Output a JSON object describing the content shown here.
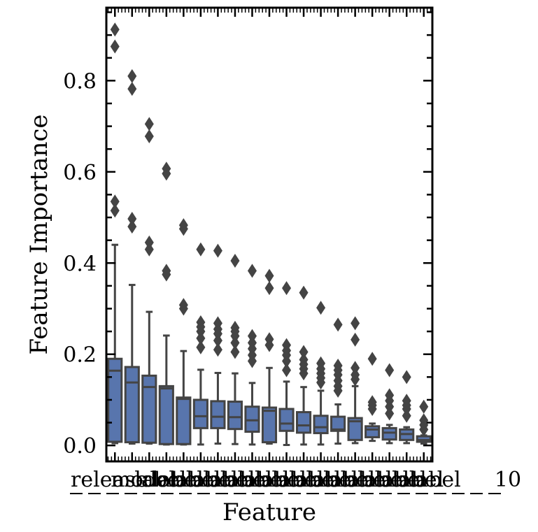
{
  "chart_data": {
    "type": "box",
    "xlabel": "Feature",
    "ylabel": "Feature Importance",
    "ylim": [
      -0.035,
      0.96
    ],
    "yticks": [
      0.0,
      0.2,
      0.4,
      0.6,
      0.8
    ],
    "ytick_labels": [
      "0.0",
      "0.2",
      "0.4",
      "0.6",
      "0.8"
    ],
    "grid": false,
    "box_color": "#5875ad",
    "edge_color": "#444444",
    "axis_color": "#000000",
    "x_tick_labels_overlapping": [
      "release",
      "model",
      "label",
      "label",
      "label",
      "label",
      "label",
      "label",
      "label",
      "label",
      "label",
      "label",
      "label",
      "label",
      "label",
      "label",
      "label",
      "label",
      "label",
      "10"
    ],
    "boxes": [
      {
        "whislo": 0.005,
        "q1": 0.008,
        "med": 0.164,
        "q3": 0.19,
        "whishi": 0.44,
        "fliers": [
          0.515,
          0.535,
          0.875,
          0.912
        ]
      },
      {
        "whislo": 0.004,
        "q1": 0.007,
        "med": 0.138,
        "q3": 0.172,
        "whishi": 0.352,
        "fliers": [
          0.48,
          0.497,
          0.782,
          0.81
        ]
      },
      {
        "whislo": 0.004,
        "q1": 0.006,
        "med": 0.128,
        "q3": 0.153,
        "whishi": 0.293,
        "fliers": [
          0.43,
          0.445,
          0.678,
          0.705
        ]
      },
      {
        "whislo": 0.002,
        "q1": 0.003,
        "med": 0.125,
        "q3": 0.13,
        "whishi": 0.241,
        "fliers": [
          0.375,
          0.383,
          0.596,
          0.607
        ]
      },
      {
        "whislo": 0.002,
        "q1": 0.003,
        "med": 0.102,
        "q3": 0.105,
        "whishi": 0.207,
        "fliers": [
          0.3,
          0.308,
          0.475,
          0.483
        ]
      },
      {
        "whislo": 0.002,
        "q1": 0.038,
        "med": 0.064,
        "q3": 0.1,
        "whishi": 0.166,
        "fliers": [
          0.215,
          0.235,
          0.25,
          0.26,
          0.27,
          0.43
        ]
      },
      {
        "whislo": 0.004,
        "q1": 0.038,
        "med": 0.063,
        "q3": 0.097,
        "whishi": 0.159,
        "fliers": [
          0.21,
          0.23,
          0.245,
          0.255,
          0.268,
          0.427
        ]
      },
      {
        "whislo": 0.003,
        "q1": 0.036,
        "med": 0.062,
        "q3": 0.096,
        "whishi": 0.158,
        "fliers": [
          0.205,
          0.225,
          0.24,
          0.25,
          0.258,
          0.405
        ]
      },
      {
        "whislo": 0.002,
        "q1": 0.03,
        "med": 0.055,
        "q3": 0.085,
        "whishi": 0.137,
        "fliers": [
          0.185,
          0.198,
          0.212,
          0.225,
          0.24,
          0.383
        ]
      },
      {
        "whislo": 0.004,
        "q1": 0.007,
        "med": 0.076,
        "q3": 0.083,
        "whishi": 0.17,
        "fliers": [
          0.22,
          0.233,
          0.345,
          0.372
        ]
      },
      {
        "whislo": 0.001,
        "q1": 0.032,
        "med": 0.048,
        "q3": 0.08,
        "whishi": 0.14,
        "fliers": [
          0.165,
          0.185,
          0.198,
          0.208,
          0.22,
          0.345
        ]
      },
      {
        "whislo": 0.002,
        "q1": 0.028,
        "med": 0.044,
        "q3": 0.073,
        "whishi": 0.128,
        "fliers": [
          0.158,
          0.168,
          0.178,
          0.188,
          0.205,
          0.335
        ]
      },
      {
        "whislo": 0.002,
        "q1": 0.027,
        "med": 0.04,
        "q3": 0.065,
        "whishi": 0.12,
        "fliers": [
          0.138,
          0.148,
          0.158,
          0.168,
          0.18,
          0.302
        ]
      },
      {
        "whislo": 0.004,
        "q1": 0.032,
        "med": 0.035,
        "q3": 0.063,
        "whishi": 0.09,
        "fliers": [
          0.12,
          0.13,
          0.142,
          0.155,
          0.165,
          0.175,
          0.265
        ]
      },
      {
        "whislo": 0.005,
        "q1": 0.012,
        "med": 0.053,
        "q3": 0.06,
        "whishi": 0.13,
        "fliers": [
          0.145,
          0.155,
          0.17,
          0.232,
          0.268
        ]
      },
      {
        "whislo": 0.01,
        "q1": 0.018,
        "med": 0.035,
        "q3": 0.042,
        "whishi": 0.048,
        "fliers": [
          0.08,
          0.088,
          0.095,
          0.19
        ]
      },
      {
        "whislo": 0.005,
        "q1": 0.013,
        "med": 0.028,
        "q3": 0.038,
        "whishi": 0.045,
        "fliers": [
          0.07,
          0.085,
          0.098,
          0.11,
          0.165
        ]
      },
      {
        "whislo": 0.005,
        "q1": 0.012,
        "med": 0.025,
        "q3": 0.035,
        "whishi": 0.04,
        "fliers": [
          0.065,
          0.08,
          0.088,
          0.098,
          0.15
        ]
      },
      {
        "whislo": 0.004,
        "q1": 0.008,
        "med": 0.012,
        "q3": 0.02,
        "whishi": 0.022,
        "fliers": [
          0.035,
          0.045,
          0.055,
          0.085
        ]
      }
    ]
  }
}
